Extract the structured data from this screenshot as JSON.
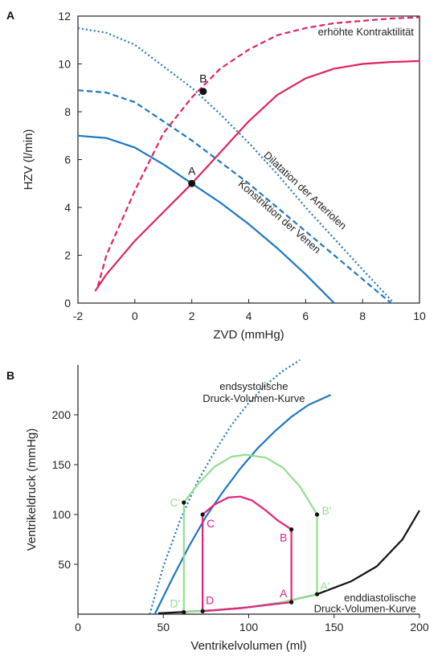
{
  "chart_data": [
    {
      "type": "line",
      "panel_label": "A",
      "xlabel": "ZVD (mmHg)",
      "ylabel": "HZV (l/min)",
      "xlim": [
        -2,
        10
      ],
      "ylim": [
        0,
        12
      ],
      "xticks": [
        -2,
        0,
        2,
        4,
        6,
        8,
        10
      ],
      "yticks": [
        0,
        2,
        4,
        6,
        8,
        10,
        12
      ],
      "series": [
        {
          "color": "#e0245e",
          "style": "solid",
          "x": [
            -1.4,
            -1,
            0,
            1,
            2,
            3,
            4,
            5,
            6,
            7,
            8,
            9,
            10
          ],
          "y": [
            0.5,
            1.2,
            2.6,
            3.8,
            5.0,
            6.3,
            7.6,
            8.7,
            9.4,
            9.8,
            10.0,
            10.08,
            10.12
          ]
        },
        {
          "color": "#e0245e",
          "style": "dashed",
          "x": [
            -1.3,
            -1,
            0,
            1,
            2,
            3,
            4,
            5,
            6,
            7,
            8,
            9,
            10
          ],
          "y": [
            0.7,
            2.0,
            4.7,
            7.1,
            8.6,
            9.8,
            10.6,
            11.2,
            11.5,
            11.7,
            11.8,
            11.9,
            11.95
          ]
        },
        {
          "color": "#1f77c0",
          "style": "solid",
          "x": [
            -2,
            -1,
            0,
            1,
            2,
            3,
            4,
            5,
            6,
            7
          ],
          "y": [
            7.0,
            6.9,
            6.5,
            5.8,
            5.0,
            4.2,
            3.3,
            2.3,
            1.2,
            0
          ]
        },
        {
          "color": "#1f77c0",
          "style": "dashed",
          "x": [
            -2,
            -1,
            0,
            1,
            2,
            3,
            4,
            5,
            6,
            7,
            8,
            9
          ],
          "y": [
            8.9,
            8.8,
            8.4,
            7.6,
            6.8,
            5.9,
            5.0,
            4.0,
            3.0,
            2.0,
            1.0,
            0
          ]
        },
        {
          "color": "#1f77c0",
          "style": "dotted",
          "x": [
            -2,
            -1,
            0,
            1,
            2,
            3,
            4,
            5,
            6,
            7,
            8,
            9.1
          ],
          "y": [
            11.5,
            11.3,
            10.8,
            9.9,
            9.0,
            7.9,
            6.7,
            5.4,
            4.0,
            2.7,
            1.4,
            0
          ]
        }
      ],
      "points": [
        {
          "label": "A",
          "x": 2.0,
          "y": 5.0
        },
        {
          "label": "B",
          "x": 2.4,
          "y": 8.85
        }
      ],
      "annotations": [
        {
          "text": "erhöhte Kontraktilität",
          "x": 9.8,
          "y": 11.2,
          "anchor": "end",
          "rotate": 0
        },
        {
          "text": "Dilatation der Arteriolen",
          "x": 5.9,
          "y": 4.6,
          "anchor": "middle",
          "rotate": 43
        },
        {
          "text": "Konstriktion der Venen",
          "x": 5.0,
          "y": 3.5,
          "anchor": "middle",
          "rotate": 41
        }
      ]
    },
    {
      "type": "line",
      "panel_label": "B",
      "xlabel": "Ventrikelvolumen (ml)",
      "ylabel": "Ventrikeldruck (mmHg)",
      "xlim": [
        0,
        200
      ],
      "ylim": [
        0,
        250
      ],
      "xticks": [
        0,
        50,
        100,
        150,
        200
      ],
      "yticks": [
        50,
        100,
        150,
        200
      ],
      "series": [
        {
          "color": "#1f77c0",
          "style": "dotted",
          "x": [
            42,
            50,
            60,
            70,
            80,
            90,
            100,
            110,
            120,
            130
          ],
          "y": [
            0,
            48,
            95,
            133,
            163,
            190,
            212,
            230,
            244,
            255
          ]
        },
        {
          "color": "#1f77c0",
          "style": "solid",
          "x": [
            45,
            55,
            65,
            75,
            85,
            95,
            105,
            115,
            125,
            135,
            148
          ],
          "y": [
            0,
            35,
            68,
            98,
            123,
            146,
            166,
            183,
            198,
            210,
            220
          ]
        },
        {
          "color": "#111111",
          "style": "solid",
          "x": [
            47,
            60,
            80,
            100,
            120,
            140,
            160,
            175,
            190,
            200
          ],
          "y": [
            1,
            2,
            4,
            7,
            12,
            20,
            33,
            48,
            75,
            104
          ]
        },
        {
          "color": "#90e090",
          "style": "solid",
          "x": [
            62,
            62,
            70,
            80,
            90,
            98,
            110,
            120,
            130,
            140,
            140,
            120,
            100,
            80,
            62
          ],
          "y": [
            2,
            112,
            130,
            148,
            158,
            160,
            157,
            147,
            128,
            100,
            20,
            12,
            7,
            4,
            2
          ]
        },
        {
          "color": "#e0247e",
          "style": "solid",
          "x": [
            73,
            73,
            80,
            88,
            95,
            102,
            110,
            117,
            125,
            125,
            110,
            95,
            73
          ],
          "y": [
            3,
            100,
            110,
            117,
            118,
            114,
            104,
            94,
            85,
            12,
            9,
            6,
            3
          ]
        }
      ],
      "points": [
        {
          "label": "A",
          "x": 125,
          "y": 12,
          "color": "#e0247e",
          "dx": -10,
          "dy": -6
        },
        {
          "label": "B",
          "x": 125,
          "y": 85,
          "color": "#e0247e",
          "dx": -10,
          "dy": 15
        },
        {
          "label": "C",
          "x": 73,
          "y": 100,
          "color": "#e0247e",
          "dx": 10,
          "dy": 16
        },
        {
          "label": "D",
          "x": 73,
          "y": 3,
          "color": "#e0247e",
          "dx": 9,
          "dy": -9
        },
        {
          "label": "A'",
          "x": 140,
          "y": 20,
          "color": "#90e090",
          "dx": 10,
          "dy": -5
        },
        {
          "label": "B'",
          "x": 140,
          "y": 100,
          "color": "#90e090",
          "dx": 12,
          "dy": 0
        },
        {
          "label": "C'",
          "x": 62,
          "y": 112,
          "color": "#90e090",
          "dx": -11,
          "dy": 5
        },
        {
          "label": "D'",
          "x": 62,
          "y": 2,
          "color": "#90e090",
          "dx": -11,
          "dy": -6
        }
      ],
      "annotations": [
        {
          "text": "endsystolische",
          "x": 103,
          "y": 225,
          "anchor": "middle",
          "color": "#1fa0d0"
        },
        {
          "text": "Druck-Volumen-Kurve",
          "x": 103,
          "y": 213,
          "anchor": "middle",
          "color": "#1fa0d0"
        },
        {
          "text": "enddiastolische",
          "x": 198,
          "y": 13,
          "anchor": "end",
          "color": "#111111"
        },
        {
          "text": "Druck-Volumen-Kurve",
          "x": 198,
          "y": 2,
          "anchor": "end",
          "color": "#111111"
        }
      ]
    }
  ]
}
